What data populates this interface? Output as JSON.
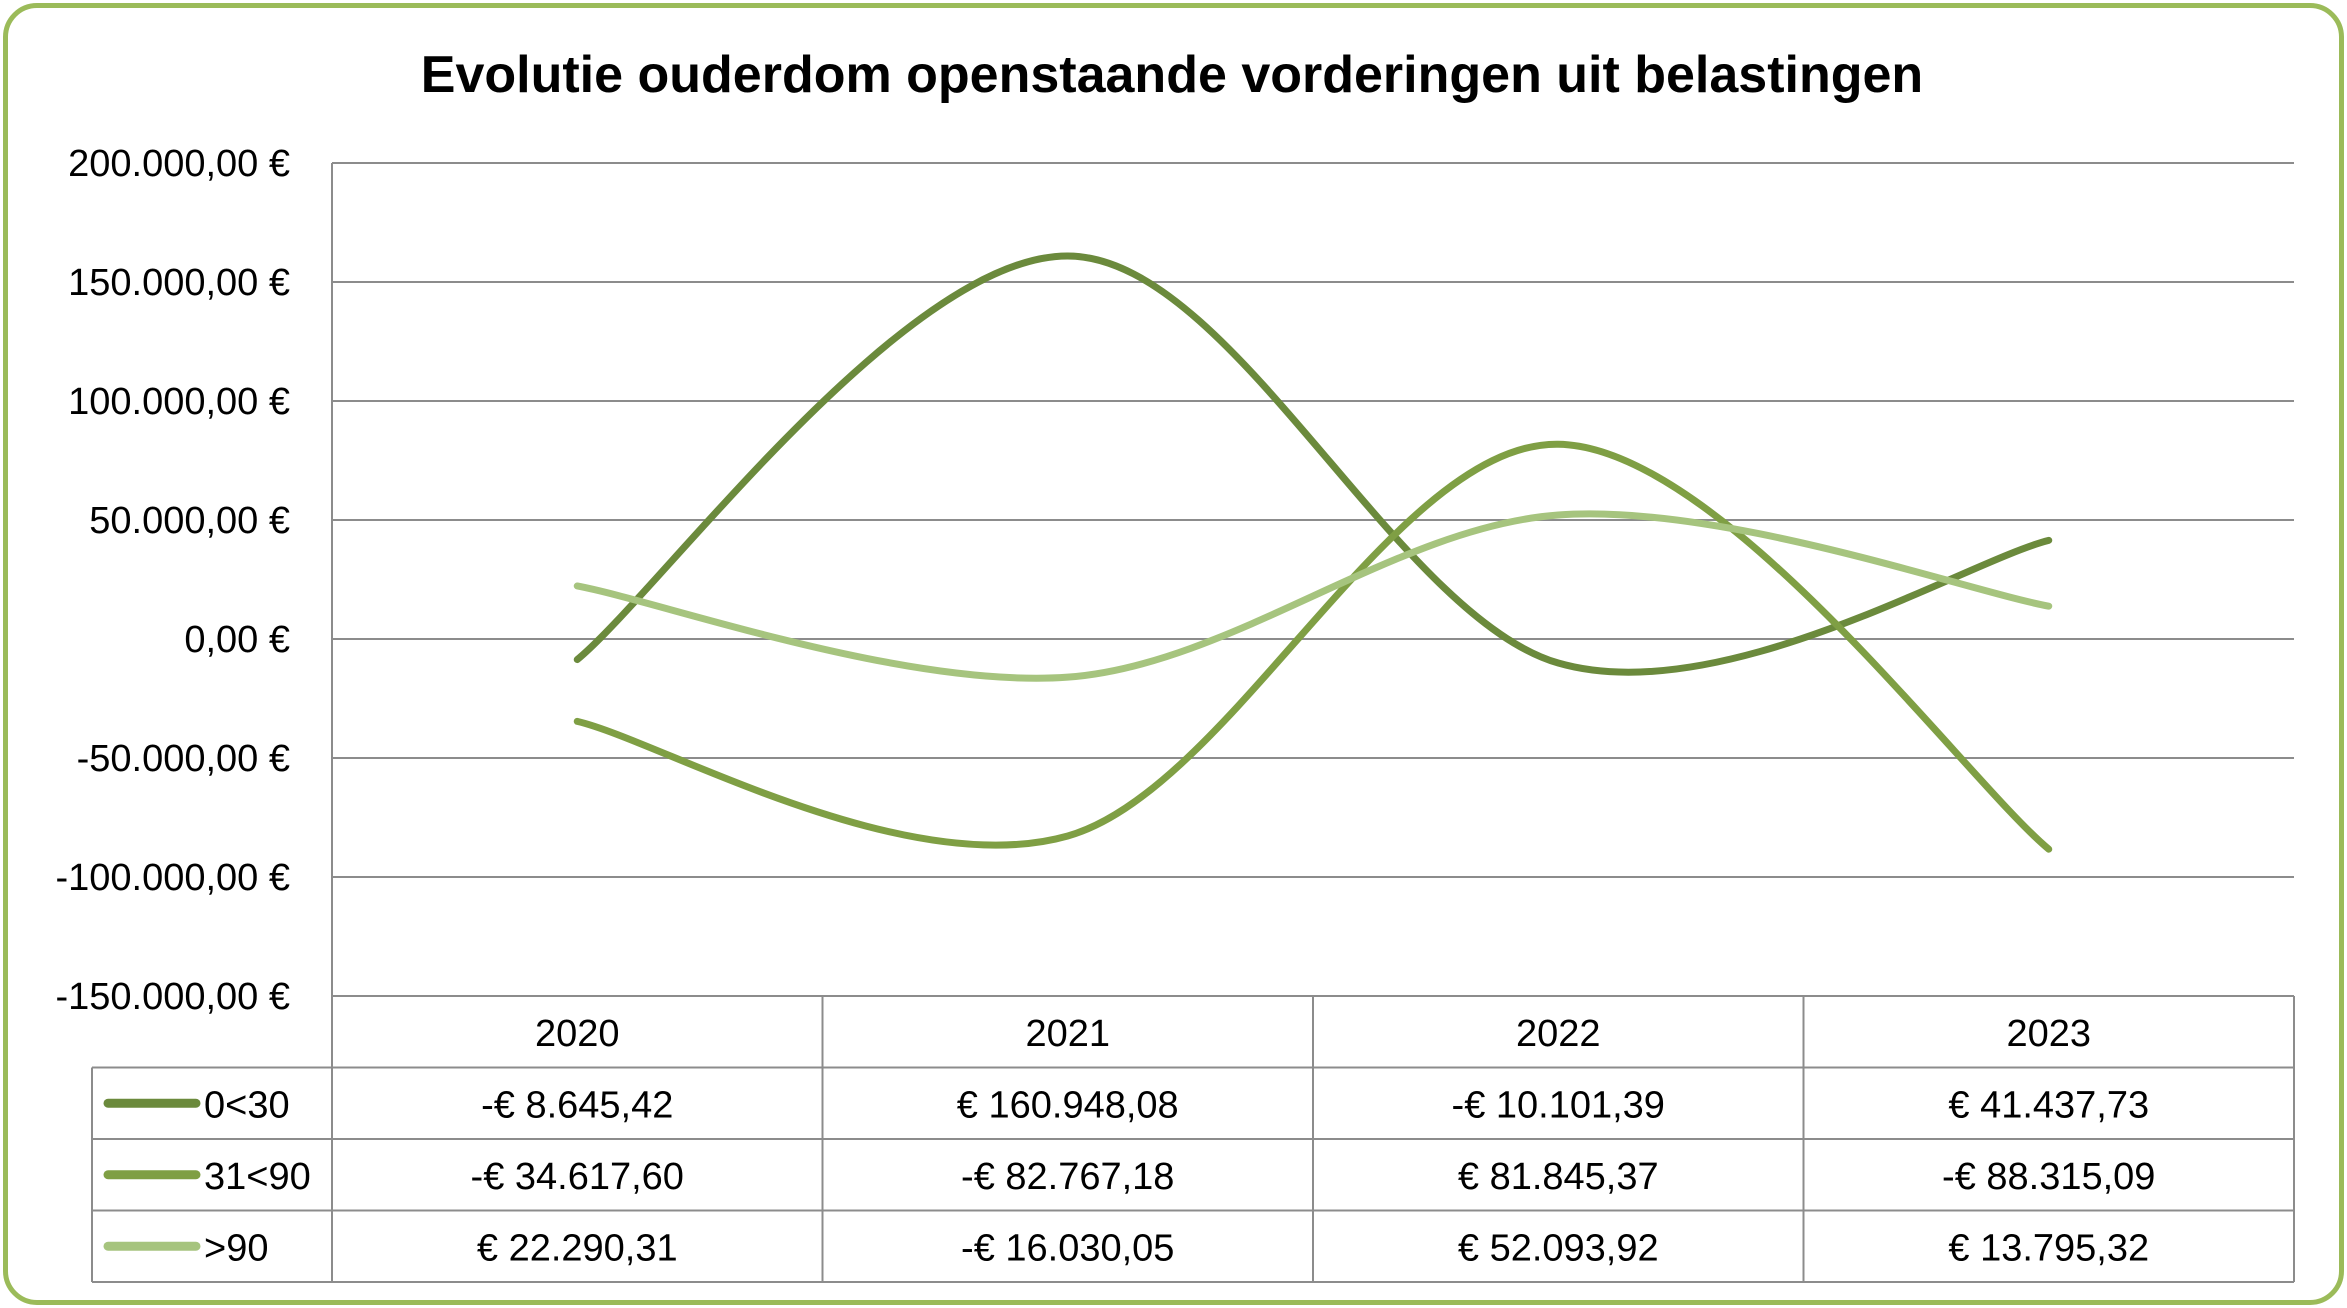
{
  "chart_data": {
    "type": "line",
    "title": "Evolutie ouderdom openstaande vorderingen uit belastingen",
    "categories": [
      "2020",
      "2021",
      "2022",
      "2023"
    ],
    "series": [
      {
        "name": "0<30",
        "color": "#6b8a3c",
        "values": [
          -8645.42,
          160948.08,
          -10101.39,
          41437.73
        ],
        "labels": [
          "-€ 8.645,42",
          "€ 160.948,08",
          "-€ 10.101,39",
          "€ 41.437,73"
        ]
      },
      {
        "name": "31<90",
        "color": "#7f9f44",
        "values": [
          -34617.6,
          -82767.18,
          81845.37,
          -88315.09
        ],
        "labels": [
          "-€ 34.617,60",
          "-€ 82.767,18",
          "€ 81.845,37",
          "-€ 88.315,09"
        ]
      },
      {
        "name": ">90",
        "color": "#a6c47e",
        "values": [
          22290.31,
          -16030.05,
          52093.92,
          13795.32
        ],
        "labels": [
          "€ 22.290,31",
          "-€ 16.030,05",
          "€ 52.093,92",
          "€ 13.795,32"
        ]
      }
    ],
    "y_ticks": [
      {
        "value": 200000,
        "label": "200.000,00 €"
      },
      {
        "value": 150000,
        "label": "150.000,00 €"
      },
      {
        "value": 100000,
        "label": "100.000,00 €"
      },
      {
        "value": 50000,
        "label": "50.000,00 €"
      },
      {
        "value": 0,
        "label": "0,00 €"
      },
      {
        "value": -50000,
        "label": "-50.000,00 €"
      },
      {
        "value": -100000,
        "label": "-100.000,00 €"
      },
      {
        "value": -150000,
        "label": "-150.000,00 €"
      }
    ],
    "ylim": [
      -150000,
      200000
    ],
    "grid": true,
    "smooth": true,
    "data_table": true,
    "frame_color": "#9bbb59"
  }
}
